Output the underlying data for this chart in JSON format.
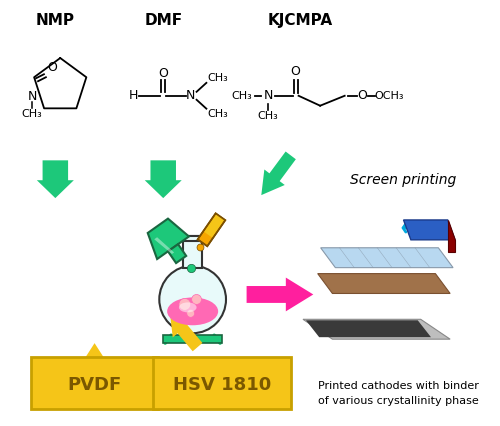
{
  "bg_color": "#ffffff",
  "solvents": [
    "NMP",
    "DMF",
    "KJCMPA"
  ],
  "binders": [
    "PVDF",
    "HSV 1810"
  ],
  "binder_box_color": "#F5C518",
  "binder_text_color": "#7B5800",
  "green_arrow_color": "#1DC87A",
  "yellow_arrow_color": "#F5C518",
  "pink_arrow_color": "#FF1F9E",
  "screen_printing_label": "Screen printing",
  "cathode_label": "Printed cathodes with binder\nof various crystallinity phase"
}
